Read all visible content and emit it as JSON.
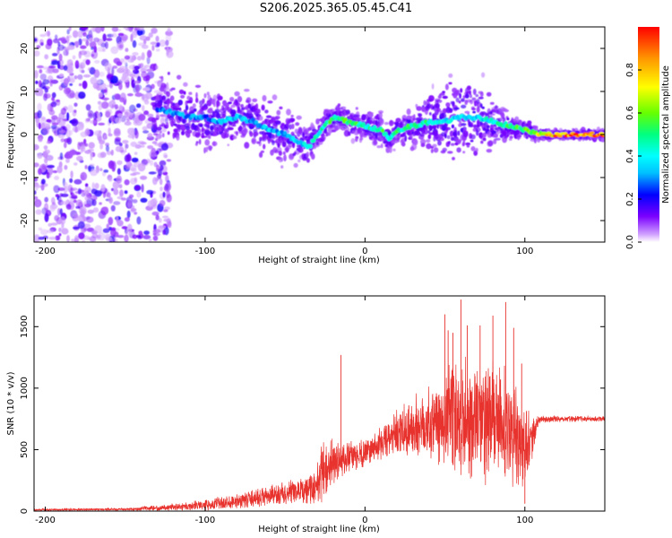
{
  "title": "S206.2025.365.05.45.C41",
  "chart_data": [
    {
      "type": "heatmap",
      "xlabel": "Height of straight line (km)",
      "ylabel": "Frequency (Hz)",
      "xlim": [
        -207,
        150
      ],
      "ylim": [
        -25,
        25
      ],
      "xticks": [
        -200,
        -100,
        0,
        100
      ],
      "yticks": [
        -20,
        -10,
        0,
        10,
        20
      ],
      "colorbar": {
        "label": "Normalized spectral amplitude",
        "range": [
          0,
          1
        ],
        "ticks": [
          0.0,
          0.2,
          0.4,
          0.6,
          0.8
        ],
        "colors": [
          "#ffffff",
          "#cc99ff",
          "#7a00ff",
          "#0000ff",
          "#00bfff",
          "#00ffff",
          "#00ff80",
          "#66ff00",
          "#ffff00",
          "#ff9900",
          "#ff0000"
        ]
      },
      "ridge": {
        "x": [
          -130,
          -120,
          -110,
          -100,
          -90,
          -80,
          -70,
          -60,
          -50,
          -40,
          -35,
          -30,
          -20,
          -10,
          0,
          10,
          15,
          20,
          30,
          40,
          50,
          60,
          70,
          80,
          90,
          100,
          110,
          120,
          130,
          140,
          150
        ],
        "frequency": [
          6,
          5,
          4,
          4,
          3,
          4,
          3,
          1,
          0,
          -2,
          -3,
          0,
          4,
          3,
          2,
          1,
          -1,
          1,
          2,
          3,
          3,
          4,
          4,
          3,
          2,
          1,
          0,
          0,
          0,
          0,
          0
        ],
        "amplitude": [
          0.3,
          0.35,
          0.35,
          0.3,
          0.35,
          0.4,
          0.35,
          0.4,
          0.35,
          0.4,
          0.45,
          0.5,
          0.6,
          0.6,
          0.5,
          0.6,
          0.5,
          0.55,
          0.6,
          0.5,
          0.45,
          0.4,
          0.4,
          0.5,
          0.55,
          0.6,
          0.75,
          0.95,
          1.0,
          1.0,
          1.0
        ],
        "spread_hz": [
          6,
          6,
          6,
          6,
          5,
          5,
          5,
          5,
          5,
          4,
          4,
          3,
          3,
          3,
          3,
          3,
          3,
          3,
          4,
          6,
          8,
          9,
          8,
          5,
          3,
          2,
          1,
          1,
          1,
          1,
          1
        ]
      },
      "noise_region_x": [
        -207,
        -130
      ]
    },
    {
      "type": "line",
      "xlabel": "Height of straight line (km)",
      "ylabel": "SNR (10 * v/v)",
      "xlim": [
        -207,
        150
      ],
      "ylim": [
        0,
        1750
      ],
      "xticks": [
        -200,
        -100,
        0,
        100
      ],
      "yticks": [
        0,
        500,
        1000,
        1500
      ],
      "color": "#e8322d",
      "envelope": {
        "x": [
          -207,
          -150,
          -130,
          -100,
          -80,
          -60,
          -40,
          -30,
          -28,
          -20,
          -10,
          0,
          10,
          20,
          30,
          40,
          50,
          60,
          70,
          80,
          90,
          95,
          100,
          110,
          150
        ],
        "base": [
          10,
          15,
          25,
          50,
          80,
          120,
          160,
          200,
          300,
          400,
          430,
          480,
          550,
          620,
          670,
          720,
          740,
          750,
          740,
          720,
          680,
          600,
          500,
          750,
          750
        ],
        "noise": [
          8,
          10,
          20,
          40,
          60,
          80,
          100,
          150,
          250,
          180,
          120,
          110,
          130,
          180,
          250,
          300,
          400,
          480,
          520,
          500,
          420,
          380,
          300,
          25,
          25
        ]
      },
      "spikes": [
        {
          "x": -15,
          "y": 1270
        },
        {
          "x": 50,
          "y": 1600
        },
        {
          "x": 52,
          "y": 1470
        },
        {
          "x": 55,
          "y": 1450
        },
        {
          "x": 60,
          "y": 1720
        },
        {
          "x": 64,
          "y": 1510
        },
        {
          "x": 72,
          "y": 1510
        },
        {
          "x": 80,
          "y": 1590
        },
        {
          "x": 88,
          "y": 1700
        },
        {
          "x": 93,
          "y": 1490
        },
        {
          "x": 98,
          "y": 1200
        },
        {
          "x": 100,
          "y": 60
        }
      ]
    }
  ]
}
